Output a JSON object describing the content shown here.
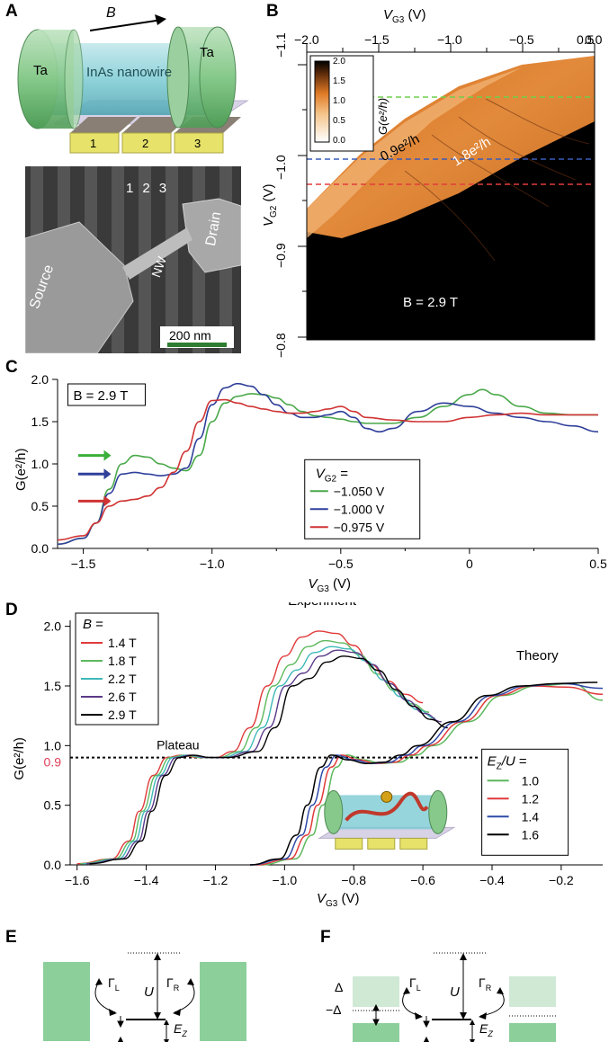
{
  "panels": {
    "A": "A",
    "B": "B",
    "C": "C",
    "D": "D",
    "E": "E",
    "F": "F"
  },
  "panelA": {
    "field_label": "B",
    "lead_left": "Ta",
    "lead_right": "Ta",
    "wire_label": "InAs nanowire",
    "gates": [
      "1",
      "2",
      "3"
    ],
    "sem_gates": [
      "1",
      "2",
      "3"
    ],
    "sem_source": "Source",
    "sem_drain": "Drain",
    "sem_nw": "NW",
    "scale_bar": "200 nm"
  },
  "panelB": {
    "x_label": "V",
    "x_label_sub": "G3",
    "x_unit": " (V)",
    "x_ticks": [
      "−2.0",
      "−1.5",
      "−1.0",
      "−0.5",
      "0.0",
      "0.5"
    ],
    "y_label": "V",
    "y_label_sub": "G2",
    "y_unit": " (V)",
    "y_ticks": [
      "−1.1",
      "−1.0",
      "−0.9",
      "−0.8"
    ],
    "cbar_ticks": [
      "2.0",
      "1.5",
      "1.0",
      "0.5",
      "0.0"
    ],
    "cbar_label": "G(e²/h)",
    "ann1": "0.9e²/h",
    "ann2": "1.8e²/h",
    "field": "B = 2.9 T",
    "colors": {
      "hot": "#e0802f",
      "dark": "#000000",
      "green": "#6fcf4a",
      "blue": "#3a5ab8",
      "red": "#e23c3c"
    }
  },
  "chart_data": [
    {
      "id": "C",
      "type": "line",
      "title": "",
      "field_label": "B = 2.9 T",
      "xlabel": "V_G3 (V)",
      "ylabel": "G(e²/h)",
      "xlim": [
        -1.6,
        0.5
      ],
      "ylim": [
        0.0,
        2.0
      ],
      "x_ticks": [
        "−1.5",
        "−1.0",
        "−0.5",
        "0",
        "0.5"
      ],
      "y_ticks": [
        "0.0",
        "0.5",
        "1.0",
        "1.5",
        "2.0"
      ],
      "legend_title": "V_G2 =",
      "series": [
        {
          "name": "−1.050 V",
          "color": "#4aa84a",
          "x": [
            -1.6,
            -1.5,
            -1.45,
            -1.4,
            -1.35,
            -1.3,
            -1.25,
            -1.2,
            -1.15,
            -1.1,
            -1.05,
            -1.0,
            -0.95,
            -0.9,
            -0.85,
            -0.8,
            -0.75,
            -0.7,
            -0.65,
            -0.6,
            -0.55,
            -0.5,
            -0.45,
            -0.4,
            -0.3,
            -0.2,
            -0.1,
            0.0,
            0.05,
            0.1,
            0.2,
            0.3,
            0.4,
            0.5
          ],
          "y": [
            0.05,
            0.12,
            0.3,
            0.7,
            1.0,
            1.1,
            1.08,
            1.0,
            0.95,
            0.92,
            1.1,
            1.5,
            1.72,
            1.8,
            1.83,
            1.82,
            1.78,
            1.7,
            1.62,
            1.57,
            1.55,
            1.53,
            1.5,
            1.48,
            1.48,
            1.55,
            1.68,
            1.82,
            1.88,
            1.82,
            1.68,
            1.6,
            1.58,
            1.58
          ]
        },
        {
          "name": "−1.000 V",
          "color": "#2f3f9a",
          "x": [
            -1.6,
            -1.5,
            -1.45,
            -1.4,
            -1.35,
            -1.3,
            -1.25,
            -1.2,
            -1.15,
            -1.1,
            -1.05,
            -1.0,
            -0.95,
            -0.9,
            -0.85,
            -0.8,
            -0.75,
            -0.7,
            -0.65,
            -0.6,
            -0.55,
            -0.5,
            -0.45,
            -0.4,
            -0.35,
            -0.3,
            -0.2,
            -0.1,
            0.0,
            0.1,
            0.2,
            0.3,
            0.4,
            0.5
          ],
          "y": [
            0.05,
            0.12,
            0.3,
            0.65,
            0.88,
            0.9,
            0.88,
            0.86,
            0.88,
            0.95,
            1.3,
            1.7,
            1.9,
            1.95,
            1.92,
            1.82,
            1.7,
            1.6,
            1.55,
            1.55,
            1.58,
            1.62,
            1.55,
            1.42,
            1.38,
            1.42,
            1.62,
            1.72,
            1.68,
            1.6,
            1.55,
            1.5,
            1.45,
            1.38
          ]
        },
        {
          "name": "−0.975 V",
          "color": "#d03434",
          "x": [
            -1.6,
            -1.5,
            -1.45,
            -1.4,
            -1.35,
            -1.3,
            -1.25,
            -1.2,
            -1.15,
            -1.1,
            -1.05,
            -1.0,
            -0.95,
            -0.9,
            -0.85,
            -0.8,
            -0.75,
            -0.7,
            -0.65,
            -0.6,
            -0.55,
            -0.5,
            -0.45,
            -0.4,
            -0.3,
            -0.2,
            -0.1,
            0.0,
            0.1,
            0.2,
            0.3,
            0.4,
            0.5
          ],
          "y": [
            0.1,
            0.15,
            0.3,
            0.5,
            0.56,
            0.58,
            0.62,
            0.72,
            0.9,
            1.15,
            1.5,
            1.75,
            1.76,
            1.72,
            1.68,
            1.65,
            1.62,
            1.6,
            1.6,
            1.62,
            1.65,
            1.68,
            1.62,
            1.55,
            1.52,
            1.5,
            1.5,
            1.55,
            1.58,
            1.6,
            1.58,
            1.58,
            1.58
          ]
        }
      ],
      "arrows": {
        "green": "#3ab03a",
        "blue": "#2f3f9a",
        "red": "#d03434"
      }
    },
    {
      "id": "D",
      "type": "line",
      "title": "",
      "xlabel": "V_G3 (V)",
      "ylabel": "G(e²/h)",
      "xlim": [
        -1.62,
        -0.08
      ],
      "ylim": [
        0.0,
        2.05
      ],
      "x_ticks": [
        "−1.6",
        "−1.4",
        "−1.2",
        "−1.0",
        "−0.8",
        "−0.6",
        "−0.4",
        "−0.2"
      ],
      "y_ticks": [
        "0.0",
        "0.5",
        "1.0",
        "1.5",
        "2.0"
      ],
      "plateau_value": "0.9",
      "plateau_label": "Plateau",
      "experiment_label": "Experiment",
      "theory_label": "Theory",
      "legend_B_title": "B =",
      "legend_E_title": "E_Z/U =",
      "experiment_series": [
        {
          "name": "1.4 T",
          "color": "#e03a3a",
          "shift": 0.0,
          "peak": 1.96
        },
        {
          "name": "1.8 T",
          "color": "#5cb85c",
          "shift": 0.015,
          "peak": 1.88
        },
        {
          "name": "2.2 T",
          "color": "#3fb8b8",
          "shift": 0.03,
          "peak": 1.83
        },
        {
          "name": "2.6 T",
          "color": "#5a3a8a",
          "shift": 0.045,
          "peak": 1.8
        },
        {
          "name": "2.9 T",
          "color": "#000000",
          "shift": 0.06,
          "peak": 1.75
        }
      ],
      "theory_series": [
        {
          "name": "1.0",
          "color": "#5cb85c",
          "shift": 0.03
        },
        {
          "name": "1.2",
          "color": "#e03a3a",
          "shift": 0.015
        },
        {
          "name": "1.4",
          "color": "#2f4aa8",
          "shift": 0.0
        },
        {
          "name": "1.6",
          "color": "#000000",
          "shift": -0.015
        }
      ]
    }
  ],
  "panelE": {
    "gamma_L": "Γ",
    "gamma_L_sub": "L",
    "gamma_R": "Γ",
    "gamma_R_sub": "R",
    "U": "U",
    "Ez": "E",
    "Ez_sub": "Z"
  },
  "panelF": {
    "gamma_L": "Γ",
    "gamma_L_sub": "L",
    "gamma_R": "Γ",
    "gamma_R_sub": "R",
    "U": "U",
    "Ez": "E",
    "Ez_sub": "Z",
    "delta": "Δ",
    "minus_delta": "−Δ"
  }
}
